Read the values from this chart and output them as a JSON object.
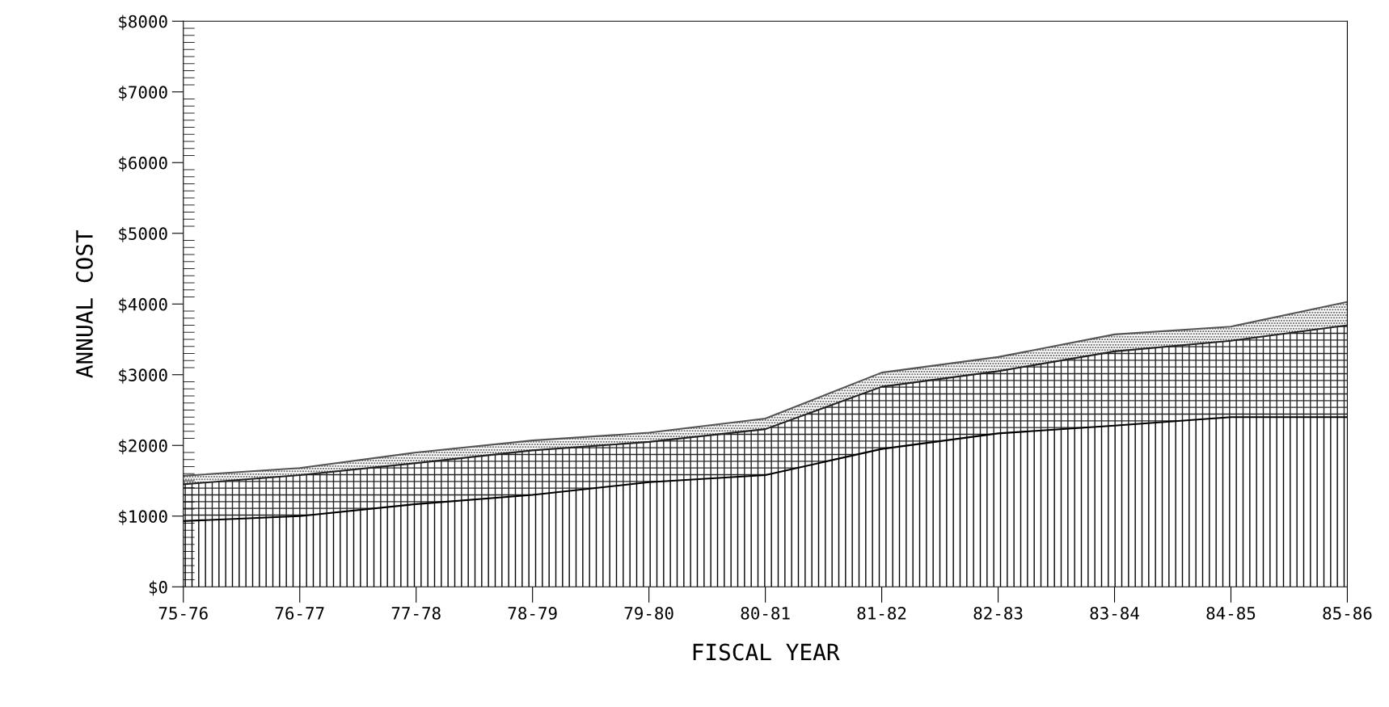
{
  "chart_data": {
    "type": "area",
    "stacked": true,
    "xlabel": "FISCAL YEAR",
    "ylabel": "ANNUAL COST",
    "categories": [
      "75-76",
      "76-77",
      "77-78",
      "78-79",
      "79-80",
      "80-81",
      "81-82",
      "82-83",
      "83-84",
      "84-85",
      "85-86"
    ],
    "series": [
      {
        "color": "#000000",
        "values": [
          930,
          1000,
          1170,
          1300,
          1480,
          1580,
          1950,
          2170,
          2280,
          2400,
          2400
        ]
      },
      {
        "color": "#222222",
        "values": [
          520,
          580,
          580,
          630,
          570,
          650,
          880,
          880,
          1050,
          1080,
          1300
        ]
      },
      {
        "color": "#555555",
        "values": [
          120,
          100,
          150,
          140,
          130,
          150,
          200,
          200,
          240,
          200,
          330
        ]
      }
    ],
    "ylim": [
      0,
      8000
    ],
    "yticks": [
      {
        "value": 0,
        "label": "$0"
      },
      {
        "value": 1000,
        "label": "$1000"
      },
      {
        "value": 2000,
        "label": "$2000"
      },
      {
        "value": 3000,
        "label": "$3000"
      },
      {
        "value": 4000,
        "label": "$4000"
      },
      {
        "value": 5000,
        "label": "$5000"
      },
      {
        "value": 6000,
        "label": "$6000"
      },
      {
        "value": 7000,
        "label": "$7000"
      },
      {
        "value": 8000,
        "label": "$8000"
      }
    ],
    "grid": false
  }
}
